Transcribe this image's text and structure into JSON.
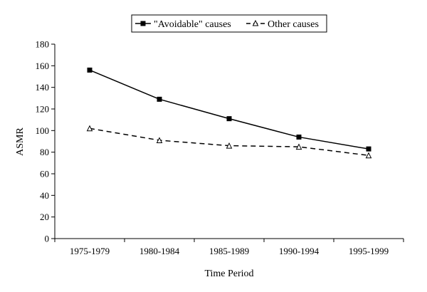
{
  "chart_data": {
    "type": "line",
    "title": "",
    "xlabel": "Time Period",
    "ylabel": "ASMR",
    "categories": [
      "1975-1979",
      "1980-1984",
      "1985-1989",
      "1990-1994",
      "1995-1999"
    ],
    "ylim": [
      0,
      180
    ],
    "yticks": [
      0,
      20,
      40,
      60,
      80,
      100,
      120,
      140,
      160,
      180
    ],
    "grid": false,
    "legend_position": "top",
    "series": [
      {
        "name": "\"Avoidable\" causes",
        "values": [
          156,
          129,
          111,
          94,
          83
        ],
        "marker": "filled-square",
        "line_style": "solid",
        "color": "#000000"
      },
      {
        "name": "Other causes",
        "values": [
          102,
          91,
          86,
          85,
          77
        ],
        "marker": "open-triangle",
        "line_style": "dashed",
        "color": "#000000"
      }
    ]
  }
}
